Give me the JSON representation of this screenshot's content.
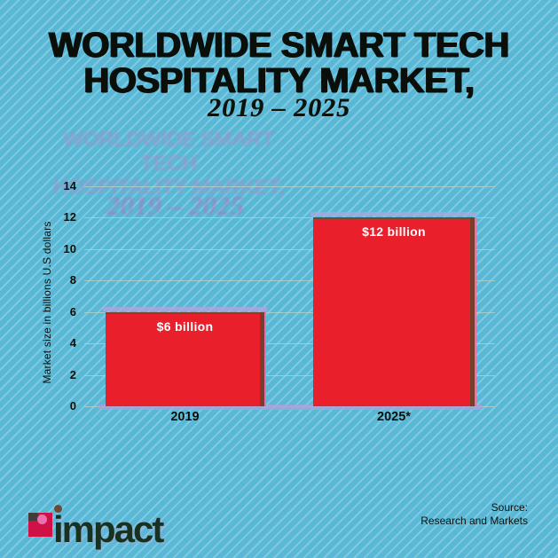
{
  "title": {
    "line1": "WORLDWIDE SMART TECH",
    "line2": "HOSPITALITY MARKET,",
    "subtitle": "2019 – 2025"
  },
  "chart_data": {
    "type": "bar",
    "title": "Worldwide smart tech hospitality market, 2019 – 2025",
    "categories": [
      "2019",
      "2025*"
    ],
    "values": [
      6,
      12
    ],
    "data_labels": [
      "$6 billion",
      "$12 billion"
    ],
    "xlabel": "",
    "ylabel": "Market size in billions U.S dollars",
    "ylim": [
      0,
      14
    ],
    "yticks": [
      0,
      2,
      4,
      6,
      8,
      10,
      12,
      14
    ],
    "grid": true,
    "legend": false,
    "bar_color": "#e9202c",
    "data_label_color": "#ffffff"
  },
  "footer": {
    "logo_text": "impact",
    "source_line1": "Source:",
    "source_line2": "Research and Markets"
  },
  "colors": {
    "background": "#58b8d6",
    "stripe": "#7fcce2",
    "bar_red": "#e9202c",
    "title_text": "#0b0f0a",
    "grid_line": "#b9d3c4",
    "logo_square": "#d01147",
    "logo_dot_pink": "#ee6fae",
    "logo_text_green": "#17331f",
    "shadow_lavender": "#aca6de",
    "shadow_brown": "#68422a",
    "shadow_pink": "#ee7cc0"
  }
}
